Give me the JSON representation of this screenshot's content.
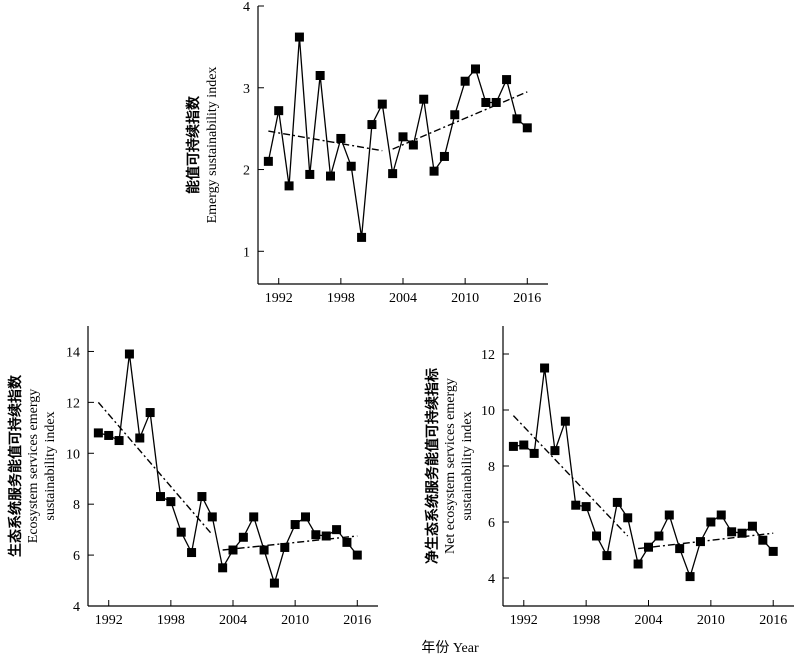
{
  "figure": {
    "xlabel": "年份 Year"
  },
  "chart_data": [
    {
      "type": "line",
      "id": "top",
      "ylabel_cn": "能值可持续指数",
      "ylabel_en": [
        "Emergy sustainability index"
      ],
      "xlim": [
        1990,
        2018
      ],
      "ylim": [
        0.6,
        4
      ],
      "xticks": [
        1992,
        1998,
        2004,
        2010,
        2016
      ],
      "yticks": [
        1,
        2,
        3,
        4
      ],
      "x": [
        1991,
        1992,
        1993,
        1994,
        1995,
        1996,
        1997,
        1998,
        1999,
        2000,
        2001,
        2002,
        2003,
        2004,
        2005,
        2006,
        2007,
        2008,
        2009,
        2010,
        2011,
        2012,
        2013,
        2014,
        2015,
        2016
      ],
      "series": [
        {
          "values": [
            2.1,
            2.72,
            1.8,
            3.62,
            1.94,
            3.15,
            1.92,
            2.38,
            2.04,
            1.17,
            2.55,
            2.8,
            1.95,
            2.4,
            2.3,
            2.86,
            1.98,
            2.16,
            2.67,
            3.08,
            3.23,
            2.82,
            2.82,
            3.1,
            2.62,
            2.51
          ]
        }
      ],
      "trendlines": [
        {
          "x": [
            1991,
            2002
          ],
          "y": [
            2.47,
            2.23
          ]
        },
        {
          "x": [
            2003,
            2016
          ],
          "y": [
            2.25,
            2.95
          ]
        }
      ]
    },
    {
      "type": "line",
      "id": "bottom-left",
      "ylabel_cn": "生态系统服务能值可持续指数",
      "ylabel_en": [
        "Ecosystem services emergy",
        "sustainability index"
      ],
      "xlim": [
        1990,
        2018
      ],
      "ylim": [
        4,
        15
      ],
      "xticks": [
        1992,
        1998,
        2004,
        2010,
        2016
      ],
      "yticks": [
        4,
        6,
        8,
        10,
        12,
        14
      ],
      "x": [
        1991,
        1992,
        1993,
        1994,
        1995,
        1996,
        1997,
        1998,
        1999,
        2000,
        2001,
        2002,
        2003,
        2004,
        2005,
        2006,
        2007,
        2008,
        2009,
        2010,
        2011,
        2012,
        2013,
        2014,
        2015,
        2016
      ],
      "series": [
        {
          "values": [
            10.8,
            10.7,
            10.5,
            13.9,
            10.6,
            11.6,
            8.3,
            8.1,
            6.9,
            6.1,
            8.3,
            7.5,
            5.5,
            6.2,
            6.7,
            7.5,
            6.2,
            4.9,
            6.3,
            7.2,
            7.5,
            6.8,
            6.75,
            7.0,
            6.5,
            6.0
          ]
        }
      ],
      "trendlines": [
        {
          "x": [
            1991,
            2002
          ],
          "y": [
            12.0,
            6.8
          ]
        },
        {
          "x": [
            2003,
            2016
          ],
          "y": [
            6.2,
            6.75
          ]
        }
      ]
    },
    {
      "type": "line",
      "id": "bottom-right",
      "ylabel_cn": "净生态系统服务能值可持续指标",
      "ylabel_en": [
        "Net ecosystem services emergy",
        "sustainability index"
      ],
      "xlim": [
        1990,
        2018
      ],
      "ylim": [
        3,
        13
      ],
      "xticks": [
        1992,
        1998,
        2004,
        2010,
        2016
      ],
      "yticks": [
        4,
        6,
        8,
        10,
        12
      ],
      "x": [
        1991,
        1992,
        1993,
        1994,
        1995,
        1996,
        1997,
        1998,
        1999,
        2000,
        2001,
        2002,
        2003,
        2004,
        2005,
        2006,
        2007,
        2008,
        2009,
        2010,
        2011,
        2012,
        2013,
        2014,
        2015,
        2016
      ],
      "series": [
        {
          "values": [
            8.7,
            8.75,
            8.45,
            11.5,
            8.55,
            9.6,
            6.6,
            6.55,
            5.5,
            4.8,
            6.7,
            6.15,
            4.5,
            5.1,
            5.5,
            6.25,
            5.05,
            4.05,
            5.3,
            6.0,
            6.25,
            5.65,
            5.6,
            5.85,
            5.35,
            4.95
          ]
        }
      ],
      "trendlines": [
        {
          "x": [
            1991,
            2002
          ],
          "y": [
            9.8,
            5.5
          ]
        },
        {
          "x": [
            2003,
            2016
          ],
          "y": [
            5.05,
            5.6
          ]
        }
      ]
    }
  ]
}
